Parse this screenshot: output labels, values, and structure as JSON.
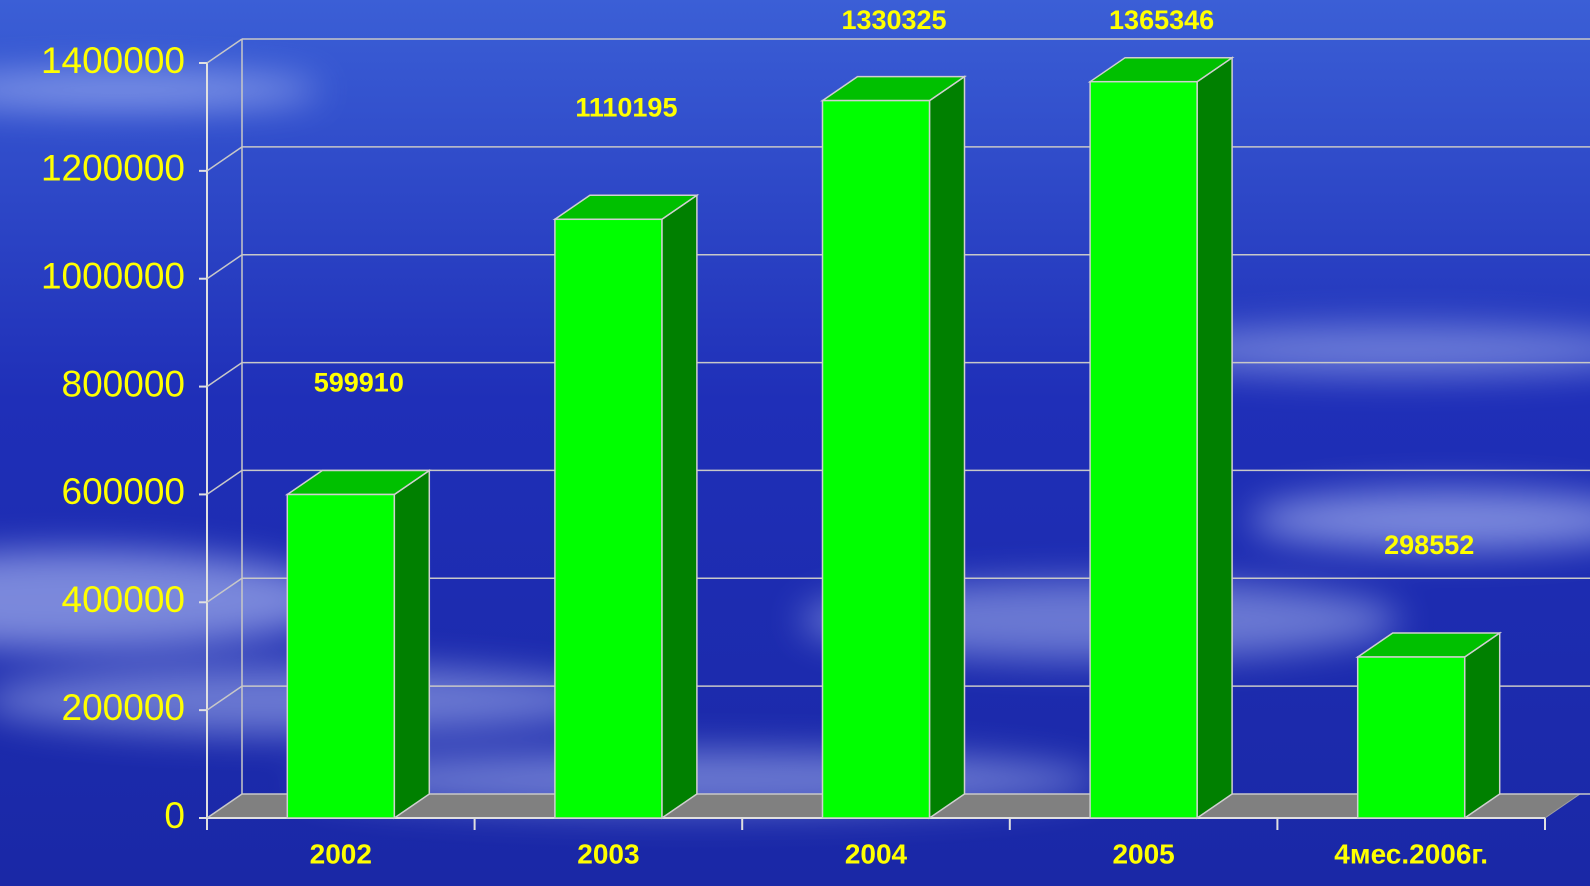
{
  "chart_data": {
    "type": "bar3d",
    "categories": [
      "2002",
      "2003",
      "2004",
      "2005",
      "4мес.2006г."
    ],
    "values": [
      599910,
      1110195,
      1330325,
      1365346,
      298552
    ],
    "color": "#00ff00",
    "side_color": "#008000",
    "top_color": "#00c000",
    "ylim": [
      0,
      1400000
    ],
    "yticks": [
      0,
      200000,
      400000,
      600000,
      800000,
      1000000,
      1200000,
      1400000
    ],
    "grid": true
  }
}
